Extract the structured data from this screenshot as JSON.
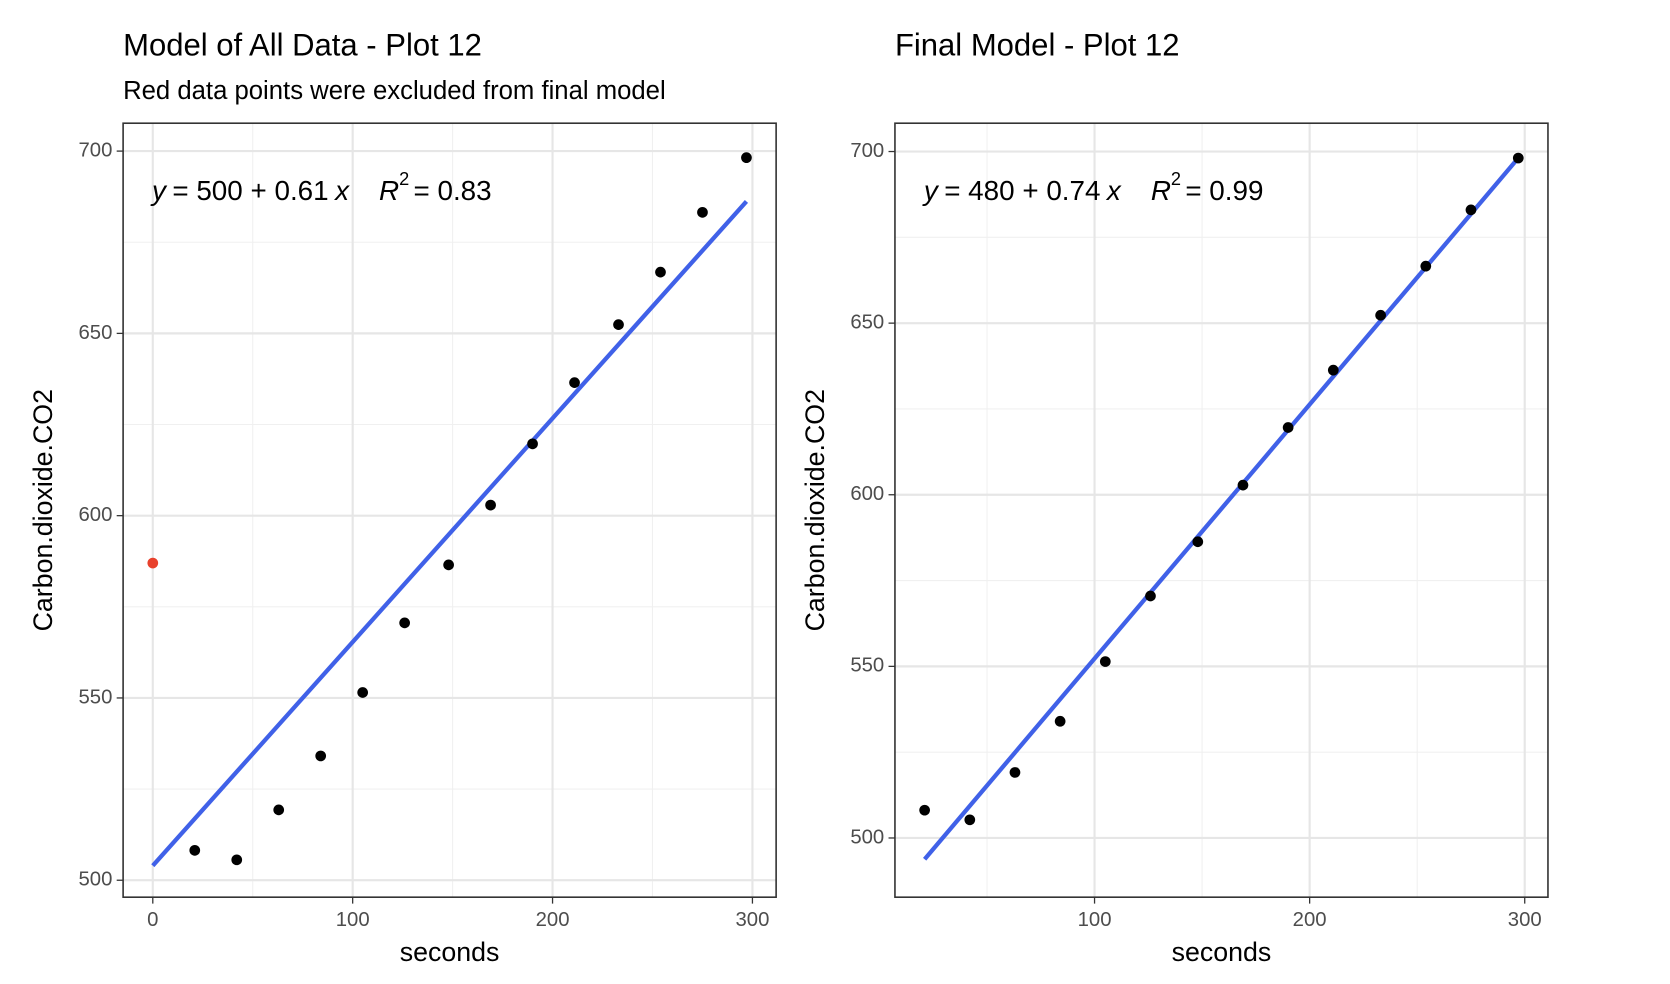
{
  "chart_data": [
    {
      "type": "scatter",
      "title": "Model of All Data - Plot 12",
      "subtitle": "Red data points were excluded from final model",
      "x_label": "seconds",
      "y_label": "Carbon.dioxide.CO2",
      "points": {
        "color": "#000000",
        "x": [
          21,
          42,
          63,
          84,
          105,
          126,
          148,
          169,
          190,
          211,
          233,
          254,
          275,
          297
        ],
        "values": [
          508.2,
          505.6,
          519.3,
          534.1,
          551.5,
          570.6,
          586.5,
          602.9,
          619.7,
          636.5,
          652.4,
          666.8,
          683.2,
          698.2
        ]
      },
      "excluded": {
        "color": "#e8412c",
        "x": [
          0
        ],
        "values": [
          587
        ]
      },
      "fit": {
        "color": "#4061e8",
        "x": [
          0,
          297
        ],
        "values": [
          504,
          686.2
        ]
      },
      "annotation": {
        "y_var": "y",
        "equation": "= 500 + 0.61",
        "x_var": "x",
        "r": "R",
        "r_exp": "2",
        "r_value": "= 0.83"
      },
      "xlim": [
        -14.85,
        311.85
      ],
      "ylim": [
        495.35,
        707.65
      ],
      "xticks": [
        0,
        100,
        200,
        300
      ],
      "yticks": [
        500,
        550,
        600,
        650,
        700
      ],
      "minor_xticks": [
        50,
        150,
        250
      ],
      "minor_yticks": [
        525,
        575,
        625,
        675
      ],
      "grid": true
    },
    {
      "type": "scatter",
      "title": "Final Model - Plot 12",
      "x_label": "seconds",
      "y_label": "Carbon.dioxide.CO2",
      "points": {
        "color": "#000000",
        "x": [
          21,
          42,
          63,
          84,
          105,
          126,
          148,
          169,
          190,
          211,
          233,
          254,
          275,
          297
        ],
        "values": [
          508.1,
          505.3,
          519.1,
          534.0,
          551.4,
          570.5,
          586.3,
          602.8,
          619.6,
          636.3,
          652.3,
          666.6,
          683.0,
          698.1
        ]
      },
      "fit": {
        "color": "#4061e8",
        "x": [
          21,
          297
        ],
        "values": [
          493.8,
          698.1
        ]
      },
      "annotation": {
        "y_var": "y",
        "equation": "= 480 + 0.74",
        "x_var": "x",
        "r": "R",
        "r_exp": "2",
        "r_value": "= 0.99"
      },
      "xlim": [
        7.2,
        310.8
      ],
      "ylim": [
        482.75,
        708.25
      ],
      "xticks": [
        100,
        200,
        300
      ],
      "yticks": [
        500,
        550,
        600,
        650,
        700
      ],
      "minor_xticks": [
        50,
        150,
        250
      ],
      "minor_yticks": [
        525,
        575,
        625,
        675
      ],
      "grid": true
    }
  ]
}
